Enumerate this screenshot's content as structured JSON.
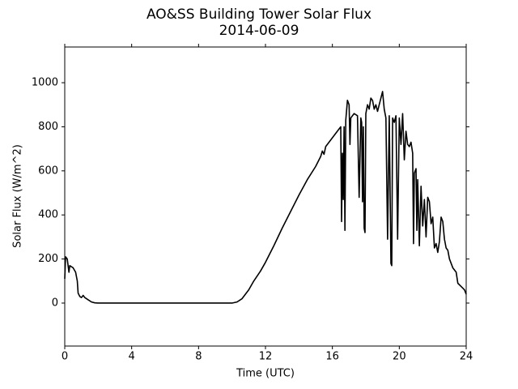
{
  "chart_data": {
    "type": "line",
    "title": "AO&SS Building Tower Solar Flux",
    "subtitle": "2014-06-09",
    "x_label": "Time (UTC)",
    "y_label": "Solar Flux (W/m^2)",
    "color": "#000000",
    "xlim": [
      0,
      24
    ],
    "xticks": [
      0,
      4,
      8,
      12,
      16,
      20,
      24
    ],
    "ylim": [
      -195,
      1162
    ],
    "yticks": [
      0,
      200,
      400,
      600,
      800,
      1000
    ],
    "grid": false,
    "x": [
      0,
      0.05,
      0.15,
      0.25,
      0.3,
      0.5,
      0.65,
      0.75,
      0.8,
      0.9,
      1.0,
      1.1,
      1.2,
      1.4,
      1.6,
      1.8,
      2.0,
      4.0,
      6.0,
      8.0,
      10.0,
      10.3,
      10.6,
      11.0,
      11.3,
      11.7,
      12.0,
      12.5,
      13.0,
      13.5,
      14.0,
      14.5,
      15.0,
      15.3,
      15.4,
      15.5,
      15.6,
      16.0,
      16.4,
      16.5,
      16.55,
      16.6,
      16.65,
      16.7,
      16.75,
      16.8,
      16.9,
      17.0,
      17.05,
      17.1,
      17.3,
      17.5,
      17.6,
      17.7,
      17.75,
      17.8,
      17.85,
      17.9,
      17.95,
      18.0,
      18.1,
      18.2,
      18.3,
      18.4,
      18.5,
      18.6,
      18.7,
      18.8,
      19.0,
      19.1,
      19.2,
      19.3,
      19.4,
      19.5,
      19.55,
      19.6,
      19.7,
      19.8,
      19.9,
      20.0,
      20.1,
      20.2,
      20.3,
      20.4,
      20.5,
      20.6,
      20.7,
      20.8,
      20.85,
      20.9,
      21.0,
      21.05,
      21.1,
      21.2,
      21.3,
      21.4,
      21.5,
      21.6,
      21.7,
      21.8,
      21.9,
      22.0,
      22.1,
      22.2,
      22.3,
      22.4,
      22.5,
      22.6,
      22.7,
      22.8,
      22.9,
      23.0,
      23.2,
      23.4,
      23.5,
      23.7,
      23.9,
      24.0
    ],
    "values": [
      110,
      210,
      200,
      140,
      170,
      160,
      140,
      100,
      45,
      30,
      25,
      35,
      25,
      15,
      5,
      1,
      0,
      0,
      0,
      0,
      0,
      5,
      20,
      60,
      100,
      145,
      185,
      260,
      340,
      415,
      490,
      560,
      620,
      665,
      690,
      675,
      710,
      750,
      790,
      800,
      370,
      680,
      470,
      800,
      330,
      830,
      920,
      900,
      720,
      840,
      860,
      850,
      480,
      840,
      820,
      460,
      800,
      340,
      320,
      860,
      900,
      880,
      930,
      920,
      880,
      900,
      870,
      900,
      960,
      880,
      840,
      290,
      850,
      180,
      170,
      840,
      820,
      850,
      290,
      840,
      720,
      860,
      650,
      780,
      720,
      710,
      730,
      680,
      270,
      590,
      610,
      330,
      560,
      260,
      530,
      350,
      470,
      300,
      480,
      460,
      360,
      390,
      250,
      270,
      230,
      280,
      390,
      370,
      290,
      250,
      240,
      200,
      160,
      140,
      90,
      75,
      60,
      40
    ]
  }
}
